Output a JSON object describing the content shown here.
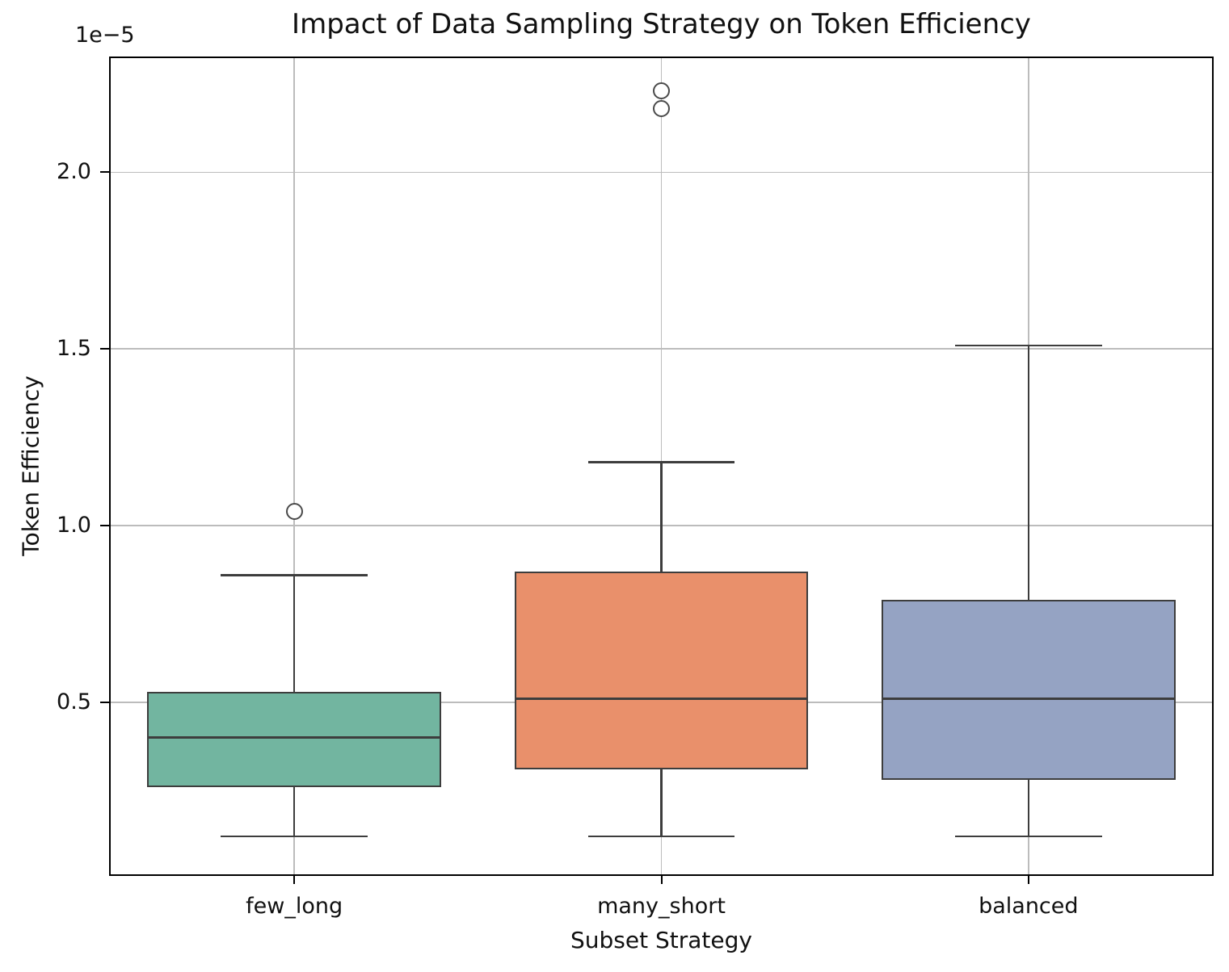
{
  "chart_data": {
    "type": "boxplot",
    "title": "Impact of Data Sampling Strategy on Token Efficiency",
    "xlabel": "Subset Strategy",
    "ylabel": "Token Efficiency",
    "y_offset_label": "1e−5",
    "y_unit_multiplier": 1e-05,
    "categories": [
      "few_long",
      "many_short",
      "balanced"
    ],
    "y_ticks": [
      0.5,
      1.0,
      1.5,
      2.0
    ],
    "ylim": [
      0.013,
      2.323
    ],
    "grid": "both",
    "grid_color": "#bcbcbc",
    "edge_color": "#3d3d3d",
    "legend": "none",
    "series": [
      {
        "category": "few_long",
        "color": "#72b5a0",
        "whisker_low": 0.12,
        "q1": 0.26,
        "median": 0.4,
        "q3": 0.53,
        "whisker_high": 0.86,
        "outliers": [
          1.04
        ]
      },
      {
        "category": "many_short",
        "color": "#e9906b",
        "whisker_low": 0.12,
        "q1": 0.31,
        "median": 0.51,
        "q3": 0.87,
        "whisker_high": 1.18,
        "outliers": [
          2.18,
          2.23
        ]
      },
      {
        "category": "balanced",
        "color": "#95a3c3",
        "whisker_low": 0.12,
        "q1": 0.28,
        "median": 0.51,
        "q3": 0.79,
        "whisker_high": 1.51,
        "outliers": []
      }
    ]
  }
}
